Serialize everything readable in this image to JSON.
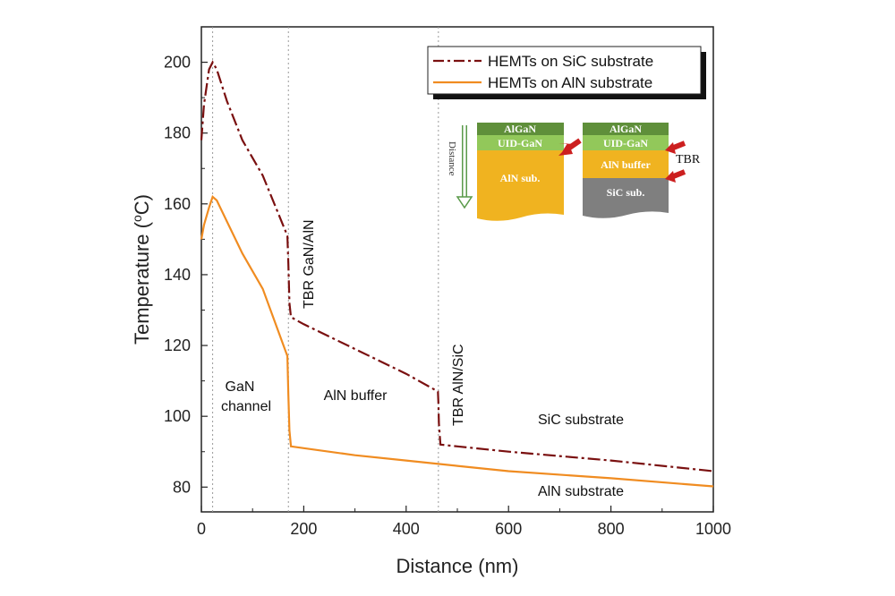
{
  "chart_data": {
    "type": "line",
    "xlabel": "Distance (nm)",
    "ylabel": "Temperature (°C)",
    "ylabel_main": "Temperature (",
    "ylabel_sup": "o",
    "ylabel_tail": "C)",
    "xlim": [
      0,
      1000
    ],
    "ylim": [
      73,
      210
    ],
    "xticks": [
      0,
      200,
      400,
      600,
      800,
      1000
    ],
    "yticks": [
      80,
      100,
      120,
      140,
      160,
      180,
      200
    ],
    "grid": false,
    "legend_position": "top-right",
    "series": [
      {
        "name": "HEMTs on SiC substrate",
        "color": "#7a1010",
        "style": "dash-dot",
        "x": [
          0,
          5,
          15,
          22,
          30,
          50,
          80,
          120,
          168,
          170,
          172,
          175,
          200,
          300,
          400,
          462,
          463,
          464,
          467,
          500,
          600,
          800,
          1000
        ],
        "y": [
          178,
          188,
          198,
          200,
          198,
          189,
          178,
          168,
          151,
          143,
          132,
          128,
          126,
          119,
          112,
          107,
          104,
          98,
          92,
          91.5,
          90,
          87.5,
          84.5
        ]
      },
      {
        "name": "HEMTs on AlN substrate",
        "color": "#f08c21",
        "style": "solid",
        "x": [
          0,
          5,
          15,
          22,
          30,
          50,
          80,
          120,
          168,
          170,
          172,
          175,
          200,
          300,
          400,
          500,
          600,
          800,
          1000
        ],
        "y": [
          150,
          154,
          159,
          162,
          161,
          155,
          146,
          136,
          117,
          106,
          96,
          91.5,
          91,
          89,
          87.5,
          86,
          84.5,
          82.5,
          80.2
        ]
      }
    ],
    "boundaries": [
      22,
      170,
      463
    ],
    "annotations": {
      "gan_line1": "GaN",
      "gan_line2": "channel",
      "aln_buffer": "AlN buffer",
      "tbr_gan_aln": "TBR GaN/AlN",
      "tbr_aln_sic": "TBR AlN/SiC",
      "sic_substrate": "SiC substrate",
      "aln_substrate": "AlN substrate"
    },
    "inset": {
      "left_stack": {
        "top": "AlGaN",
        "middle": "UID-GaN",
        "bottom": "AlN sub."
      },
      "right_stack": {
        "top": "AlGaN",
        "middle": "UID-GaN",
        "buffer": "AlN buffer",
        "bottom": "SiC sub."
      },
      "distance_label": "Distance",
      "tbr_label": "TBR",
      "colors": {
        "algan": "#5f8f3a",
        "uid_gan": "#92c85a",
        "aln": "#f0b320",
        "sic": "#7f7f7f",
        "arrow": "#cc1f1f",
        "distance_arrow": "#5a9a4a"
      }
    }
  }
}
